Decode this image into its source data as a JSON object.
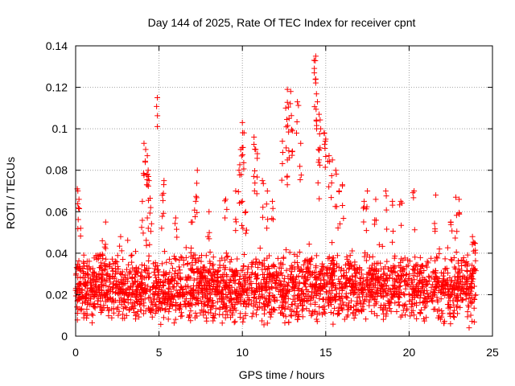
{
  "chart_data": {
    "type": "scatter",
    "title": "Day 144 of 2025, Rate Of TEC Index for receiver cpnt",
    "xlabel": "GPS time / hours",
    "ylabel": "ROTI / TECUs",
    "xlim": [
      0,
      25
    ],
    "ylim": [
      0,
      0.14
    ],
    "xticks": [
      "0",
      "5",
      "10",
      "15",
      "20",
      "25"
    ],
    "yticks": [
      "0",
      "0.02",
      "0.04",
      "0.06",
      "0.08",
      "0.1",
      "0.12",
      "0.14"
    ],
    "grid": true,
    "marker": "+",
    "series_color": "#ff0000",
    "series": [
      {
        "name": "ROTI",
        "summary": "dense band of points over 0-24 h, mostly between 0.005 and 0.045 TECU/s",
        "baseline_band": [
          0.005,
          0.045
        ],
        "notable_points": [
          {
            "x": 0.1,
            "y": 0.071
          },
          {
            "x": 0.2,
            "y": 0.066
          },
          {
            "x": 0.3,
            "y": 0.052
          },
          {
            "x": 1.6,
            "y": 0.046
          },
          {
            "x": 1.8,
            "y": 0.055
          },
          {
            "x": 2.7,
            "y": 0.048
          },
          {
            "x": 4.1,
            "y": 0.093
          },
          {
            "x": 4.2,
            "y": 0.09
          },
          {
            "x": 4.3,
            "y": 0.087
          },
          {
            "x": 4.35,
            "y": 0.08
          },
          {
            "x": 4.4,
            "y": 0.075
          },
          {
            "x": 4.0,
            "y": 0.065
          },
          {
            "x": 4.5,
            "y": 0.062
          },
          {
            "x": 4.3,
            "y": 0.057
          },
          {
            "x": 4.9,
            "y": 0.115
          },
          {
            "x": 5.3,
            "y": 0.075
          },
          {
            "x": 5.2,
            "y": 0.068
          },
          {
            "x": 6.0,
            "y": 0.057
          },
          {
            "x": 7.3,
            "y": 0.08
          },
          {
            "x": 7.2,
            "y": 0.065
          },
          {
            "x": 7.0,
            "y": 0.055
          },
          {
            "x": 8.0,
            "y": 0.06
          },
          {
            "x": 9.0,
            "y": 0.066
          },
          {
            "x": 9.6,
            "y": 0.07
          },
          {
            "x": 9.8,
            "y": 0.08
          },
          {
            "x": 9.9,
            "y": 0.09
          },
          {
            "x": 10.0,
            "y": 0.103
          },
          {
            "x": 10.1,
            "y": 0.098
          },
          {
            "x": 10.0,
            "y": 0.065
          },
          {
            "x": 10.2,
            "y": 0.06
          },
          {
            "x": 10.7,
            "y": 0.096
          },
          {
            "x": 10.8,
            "y": 0.09
          },
          {
            "x": 10.9,
            "y": 0.088
          },
          {
            "x": 11.2,
            "y": 0.075
          },
          {
            "x": 11.5,
            "y": 0.07
          },
          {
            "x": 11.8,
            "y": 0.065
          },
          {
            "x": 12.4,
            "y": 0.094
          },
          {
            "x": 12.6,
            "y": 0.11
          },
          {
            "x": 12.7,
            "y": 0.119
          },
          {
            "x": 12.9,
            "y": 0.118
          },
          {
            "x": 12.8,
            "y": 0.105
          },
          {
            "x": 12.7,
            "y": 0.085
          },
          {
            "x": 13.0,
            "y": 0.099
          },
          {
            "x": 13.3,
            "y": 0.113
          },
          {
            "x": 13.5,
            "y": 0.093
          },
          {
            "x": 14.3,
            "y": 0.133
          },
          {
            "x": 14.4,
            "y": 0.135
          },
          {
            "x": 14.4,
            "y": 0.124
          },
          {
            "x": 14.5,
            "y": 0.113
          },
          {
            "x": 14.6,
            "y": 0.107
          },
          {
            "x": 14.7,
            "y": 0.1
          },
          {
            "x": 14.6,
            "y": 0.085
          },
          {
            "x": 14.9,
            "y": 0.098
          },
          {
            "x": 15.0,
            "y": 0.095
          },
          {
            "x": 15.2,
            "y": 0.087
          },
          {
            "x": 15.4,
            "y": 0.085
          },
          {
            "x": 15.6,
            "y": 0.08
          },
          {
            "x": 15.8,
            "y": 0.07
          },
          {
            "x": 16.0,
            "y": 0.073
          },
          {
            "x": 17.5,
            "y": 0.07
          },
          {
            "x": 17.3,
            "y": 0.065
          },
          {
            "x": 18.0,
            "y": 0.066
          },
          {
            "x": 18.6,
            "y": 0.07
          },
          {
            "x": 19.0,
            "y": 0.065
          },
          {
            "x": 19.5,
            "y": 0.065
          },
          {
            "x": 20.3,
            "y": 0.07
          },
          {
            "x": 21.6,
            "y": 0.068
          },
          {
            "x": 22.8,
            "y": 0.067
          },
          {
            "x": 23.0,
            "y": 0.066
          },
          {
            "x": 22.5,
            "y": 0.055
          },
          {
            "x": 23.8,
            "y": 0.048
          },
          {
            "x": 23.9,
            "y": 0.045
          },
          {
            "x": 23.6,
            "y": 0.004
          }
        ]
      }
    ]
  }
}
